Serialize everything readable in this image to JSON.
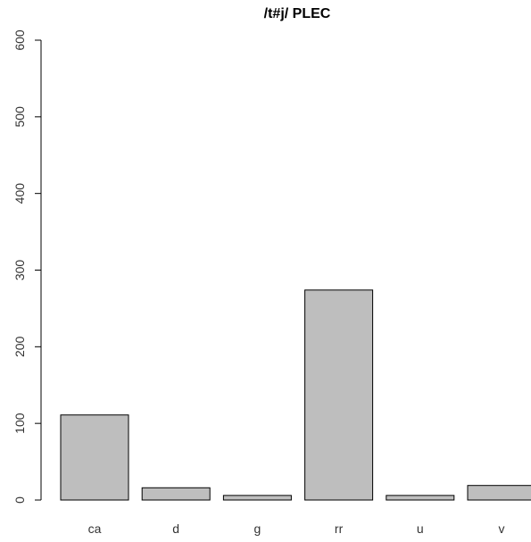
{
  "chart_data": {
    "type": "bar",
    "title": "/t#j/ PLEC",
    "xlabel": "",
    "ylabel": "",
    "categories": [
      "ca",
      "d",
      "g",
      "rr",
      "u",
      "v"
    ],
    "values": [
      111,
      16,
      6,
      274,
      6,
      19
    ],
    "ylim": [
      0,
      600
    ],
    "yticks": [
      0,
      100,
      200,
      300,
      400,
      500,
      600
    ],
    "grid": false,
    "bar_color": "#bebebe",
    "bar_stroke": "#000000"
  }
}
